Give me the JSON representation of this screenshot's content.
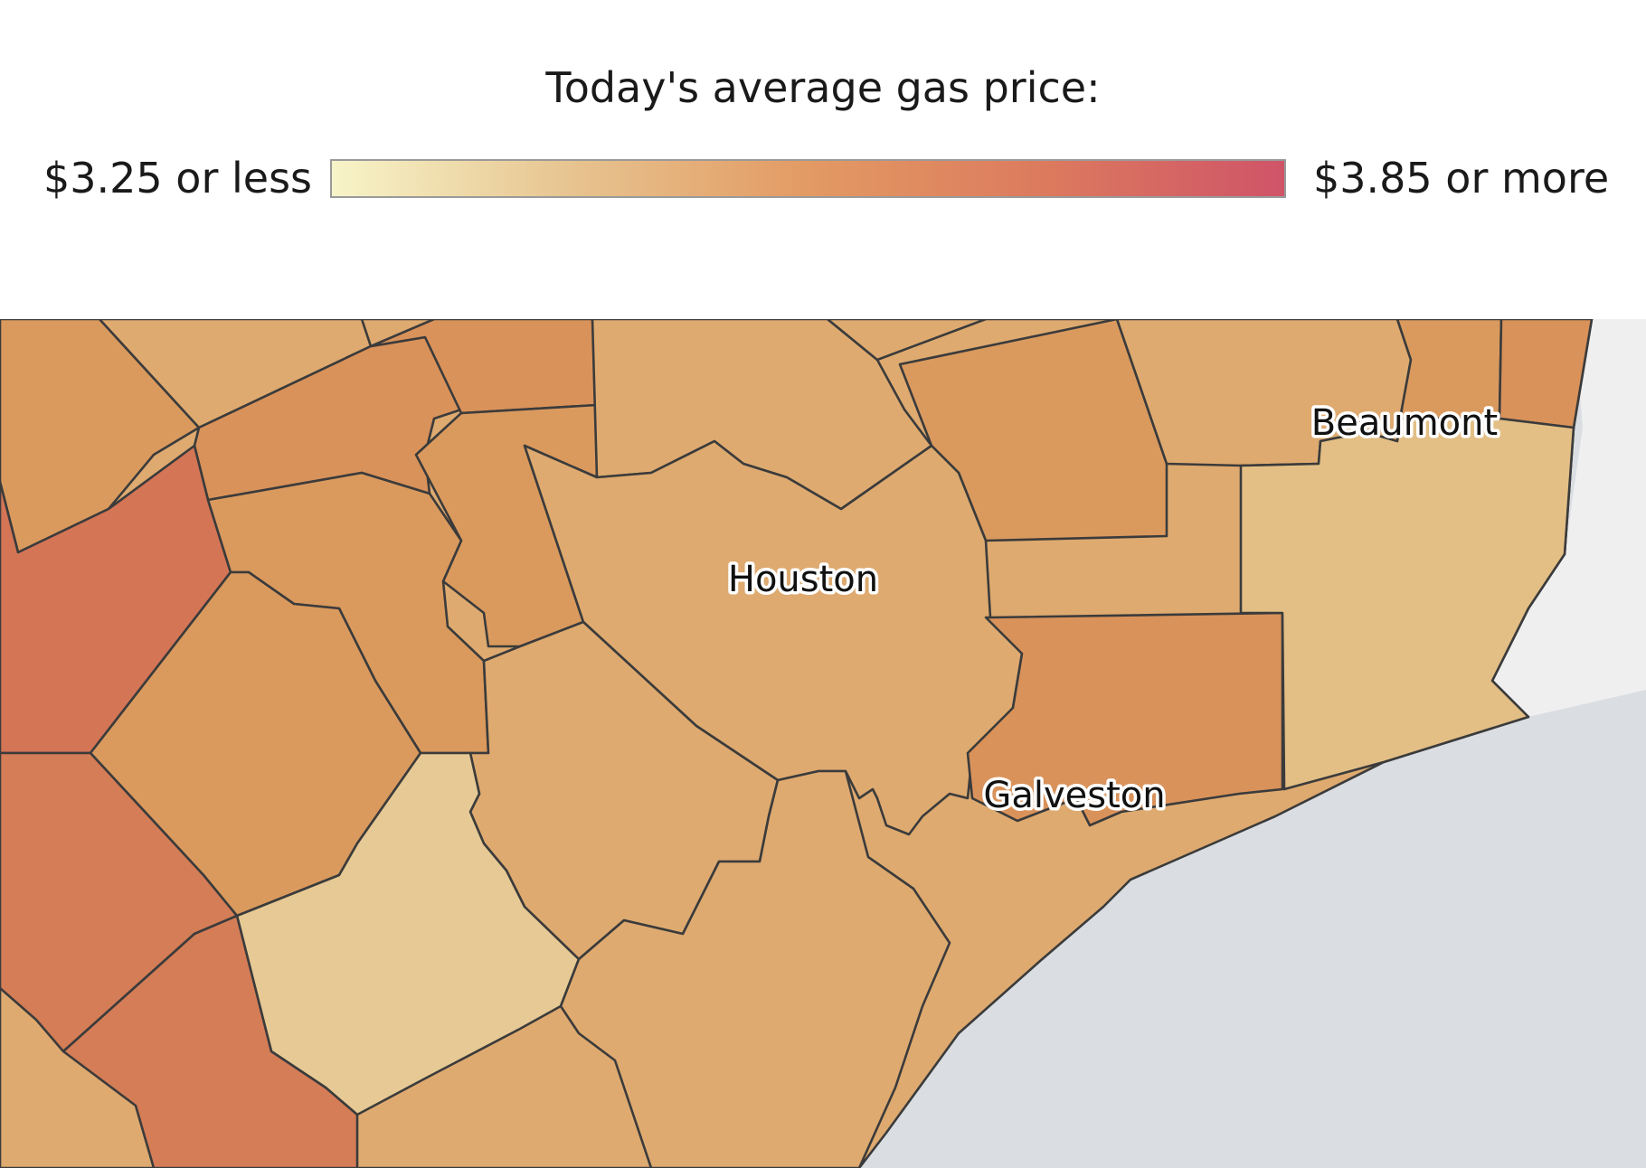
{
  "legend": {
    "title": "Today's average gas price:",
    "min_label": "$3.25 or less",
    "max_label": "$3.85 or more",
    "gradient": [
      "#f7f4c8",
      "#e7c490",
      "#e39a63",
      "#dc7a5e",
      "#cf5468"
    ]
  },
  "map": {
    "cities": {
      "houston": "Houston",
      "galveston": "Galveston",
      "beaumont": "Beaumont"
    },
    "colors": {
      "water": "#dadde1",
      "land_outside": "#efeff0",
      "light": "#e6c994",
      "light_mid": "#e3bf86",
      "mid": "#deaa70",
      "mid_dark": "#da9a5e",
      "dark": "#d9925a",
      "darker": "#d47d56",
      "darkest": "#d47556"
    }
  }
}
